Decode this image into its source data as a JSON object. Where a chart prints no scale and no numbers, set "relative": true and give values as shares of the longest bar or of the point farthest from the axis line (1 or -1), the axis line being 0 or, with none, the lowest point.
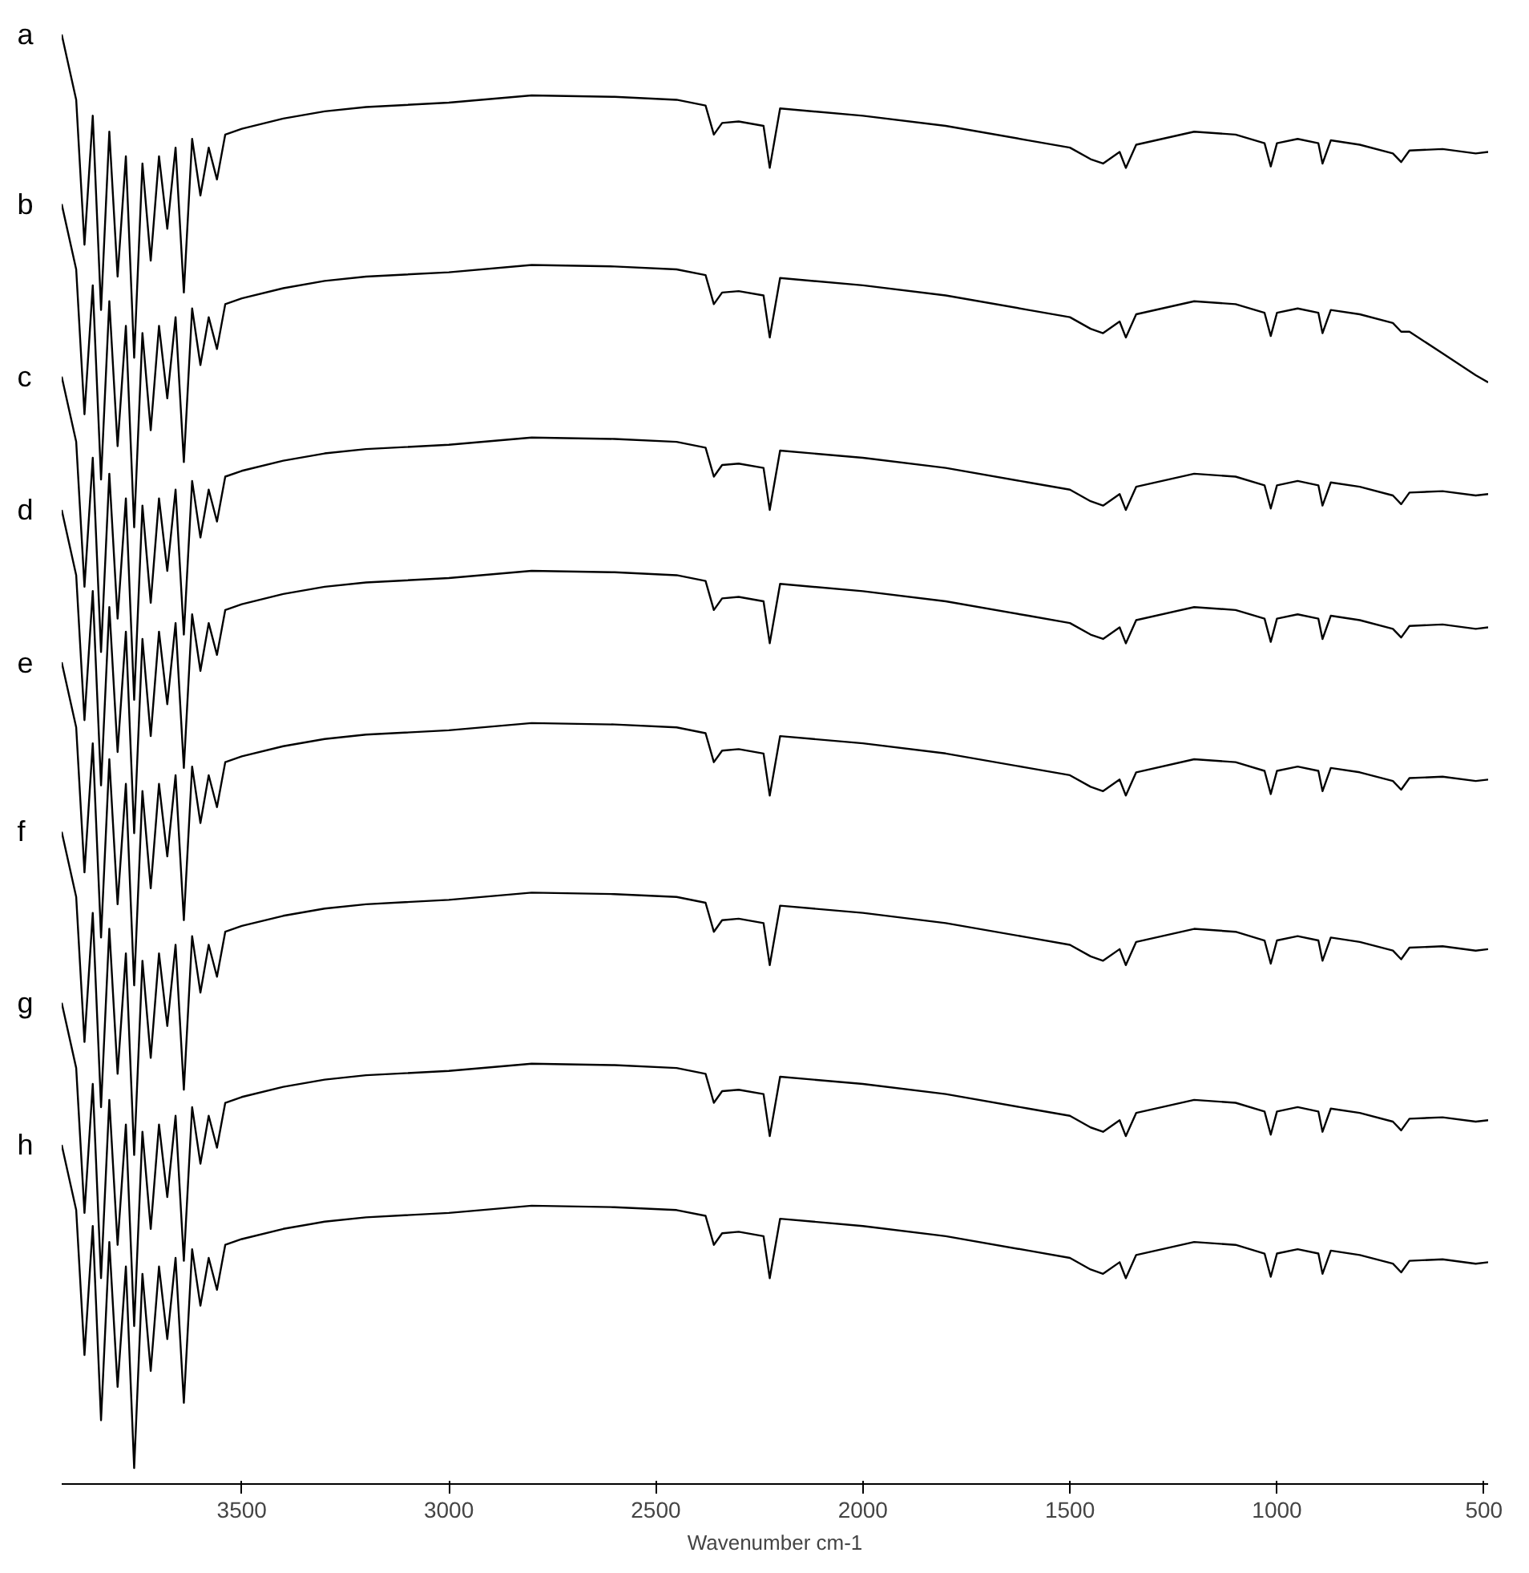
{
  "chart_data": {
    "type": "line",
    "relative": true,
    "xlabel": "Wavenumber cm-1",
    "x": [
      3935,
      3900,
      3880,
      3860,
      3840,
      3820,
      3800,
      3780,
      3760,
      3740,
      3720,
      3700,
      3680,
      3660,
      3640,
      3620,
      3600,
      3580,
      3560,
      3540,
      3500,
      3400,
      3300,
      3200,
      3000,
      2800,
      2600,
      2450,
      2380,
      2360,
      2340,
      2300,
      2240,
      2225,
      2200,
      2000,
      1800,
      1600,
      1500,
      1450,
      1420,
      1380,
      1365,
      1340,
      1200,
      1100,
      1030,
      1015,
      1000,
      950,
      900,
      890,
      870,
      800,
      720,
      700,
      680,
      600,
      520,
      490
    ],
    "xlim": [
      3935,
      490
    ],
    "xticks": [
      3500,
      3000,
      2500,
      2000,
      1500,
      1000,
      500
    ],
    "grid": false,
    "series": [
      {
        "name": "a",
        "color": "#000000",
        "values": [
          1.0,
          0.955,
          0.855,
          0.944,
          0.81,
          0.933,
          0.833,
          0.916,
          0.777,
          0.911,
          0.844,
          0.916,
          0.866,
          0.922,
          0.822,
          0.928,
          0.889,
          0.922,
          0.9,
          0.931,
          0.935,
          0.942,
          0.947,
          0.95,
          0.953,
          0.958,
          0.957,
          0.955,
          0.951,
          0.931,
          0.939,
          0.94,
          0.937,
          0.908,
          0.949,
          0.944,
          0.937,
          0.927,
          0.922,
          0.914,
          0.911,
          0.919,
          0.908,
          0.924,
          0.933,
          0.931,
          0.925,
          0.909,
          0.925,
          0.928,
          0.925,
          0.911,
          0.927,
          0.924,
          0.918,
          0.912,
          0.92,
          0.921,
          0.918,
          0.919
        ]
      },
      {
        "name": "b",
        "color": "#000000",
        "values": [
          0.883,
          0.838,
          0.738,
          0.827,
          0.693,
          0.816,
          0.716,
          0.799,
          0.66,
          0.794,
          0.727,
          0.799,
          0.749,
          0.805,
          0.705,
          0.811,
          0.772,
          0.805,
          0.783,
          0.814,
          0.818,
          0.825,
          0.83,
          0.833,
          0.836,
          0.841,
          0.84,
          0.838,
          0.834,
          0.814,
          0.822,
          0.823,
          0.82,
          0.791,
          0.832,
          0.827,
          0.82,
          0.81,
          0.805,
          0.797,
          0.794,
          0.802,
          0.791,
          0.807,
          0.816,
          0.814,
          0.808,
          0.792,
          0.808,
          0.811,
          0.808,
          0.794,
          0.81,
          0.807,
          0.801,
          0.795,
          0.795,
          0.78,
          0.765,
          0.76
        ]
      },
      {
        "name": "c",
        "color": "#000000",
        "values": [
          0.764,
          0.719,
          0.619,
          0.708,
          0.574,
          0.697,
          0.597,
          0.68,
          0.541,
          0.675,
          0.608,
          0.68,
          0.63,
          0.686,
          0.586,
          0.692,
          0.653,
          0.686,
          0.664,
          0.695,
          0.699,
          0.706,
          0.711,
          0.714,
          0.717,
          0.722,
          0.721,
          0.719,
          0.715,
          0.695,
          0.703,
          0.704,
          0.701,
          0.672,
          0.713,
          0.708,
          0.701,
          0.691,
          0.686,
          0.678,
          0.675,
          0.683,
          0.672,
          0.688,
          0.697,
          0.695,
          0.689,
          0.673,
          0.689,
          0.692,
          0.689,
          0.675,
          0.691,
          0.688,
          0.682,
          0.676,
          0.684,
          0.685,
          0.682,
          0.683
        ]
      },
      {
        "name": "d",
        "color": "#000000",
        "values": [
          0.672,
          0.627,
          0.527,
          0.616,
          0.482,
          0.605,
          0.505,
          0.588,
          0.449,
          0.583,
          0.516,
          0.588,
          0.538,
          0.594,
          0.494,
          0.6,
          0.561,
          0.594,
          0.572,
          0.603,
          0.607,
          0.614,
          0.619,
          0.622,
          0.625,
          0.63,
          0.629,
          0.627,
          0.623,
          0.603,
          0.611,
          0.612,
          0.609,
          0.58,
          0.621,
          0.616,
          0.609,
          0.599,
          0.594,
          0.586,
          0.583,
          0.591,
          0.58,
          0.596,
          0.605,
          0.603,
          0.597,
          0.581,
          0.597,
          0.6,
          0.597,
          0.583,
          0.599,
          0.596,
          0.59,
          0.584,
          0.592,
          0.593,
          0.59,
          0.591
        ]
      },
      {
        "name": "e",
        "color": "#000000",
        "values": [
          0.567,
          0.522,
          0.422,
          0.511,
          0.377,
          0.5,
          0.4,
          0.483,
          0.344,
          0.478,
          0.411,
          0.483,
          0.433,
          0.489,
          0.389,
          0.495,
          0.456,
          0.489,
          0.467,
          0.498,
          0.502,
          0.509,
          0.514,
          0.517,
          0.52,
          0.525,
          0.524,
          0.522,
          0.518,
          0.498,
          0.506,
          0.507,
          0.504,
          0.475,
          0.516,
          0.511,
          0.504,
          0.494,
          0.489,
          0.481,
          0.478,
          0.486,
          0.475,
          0.491,
          0.5,
          0.498,
          0.492,
          0.476,
          0.492,
          0.495,
          0.492,
          0.478,
          0.494,
          0.491,
          0.485,
          0.479,
          0.487,
          0.488,
          0.485,
          0.486
        ]
      },
      {
        "name": "f",
        "color": "#000000",
        "values": [
          0.45,
          0.405,
          0.305,
          0.394,
          0.26,
          0.383,
          0.283,
          0.366,
          0.227,
          0.361,
          0.294,
          0.366,
          0.316,
          0.372,
          0.272,
          0.378,
          0.339,
          0.372,
          0.35,
          0.381,
          0.385,
          0.392,
          0.397,
          0.4,
          0.403,
          0.408,
          0.407,
          0.405,
          0.401,
          0.381,
          0.389,
          0.39,
          0.387,
          0.358,
          0.399,
          0.394,
          0.387,
          0.377,
          0.372,
          0.364,
          0.361,
          0.369,
          0.358,
          0.374,
          0.383,
          0.381,
          0.375,
          0.359,
          0.375,
          0.378,
          0.375,
          0.361,
          0.377,
          0.374,
          0.368,
          0.362,
          0.37,
          0.371,
          0.368,
          0.369
        ]
      },
      {
        "name": "g",
        "color": "#000000",
        "values": [
          0.332,
          0.287,
          0.187,
          0.276,
          0.142,
          0.265,
          0.165,
          0.248,
          0.109,
          0.243,
          0.176,
          0.248,
          0.198,
          0.254,
          0.154,
          0.26,
          0.221,
          0.254,
          0.232,
          0.263,
          0.267,
          0.274,
          0.279,
          0.282,
          0.285,
          0.29,
          0.289,
          0.287,
          0.283,
          0.263,
          0.271,
          0.272,
          0.269,
          0.24,
          0.281,
          0.276,
          0.269,
          0.259,
          0.254,
          0.246,
          0.243,
          0.251,
          0.24,
          0.256,
          0.265,
          0.263,
          0.257,
          0.241,
          0.257,
          0.26,
          0.257,
          0.243,
          0.259,
          0.256,
          0.25,
          0.244,
          0.252,
          0.253,
          0.25,
          0.251
        ]
      },
      {
        "name": "h",
        "color": "#000000",
        "values": [
          0.234,
          0.189,
          0.089,
          0.178,
          0.044,
          0.167,
          0.067,
          0.15,
          0.011,
          0.145,
          0.078,
          0.15,
          0.1,
          0.156,
          0.056,
          0.162,
          0.123,
          0.156,
          0.134,
          0.165,
          0.169,
          0.176,
          0.181,
          0.184,
          0.187,
          0.192,
          0.191,
          0.189,
          0.185,
          0.165,
          0.173,
          0.174,
          0.171,
          0.142,
          0.183,
          0.178,
          0.171,
          0.161,
          0.156,
          0.148,
          0.145,
          0.153,
          0.142,
          0.158,
          0.167,
          0.165,
          0.159,
          0.143,
          0.159,
          0.162,
          0.159,
          0.145,
          0.161,
          0.158,
          0.152,
          0.146,
          0.154,
          0.155,
          0.152,
          0.153
        ]
      }
    ]
  }
}
